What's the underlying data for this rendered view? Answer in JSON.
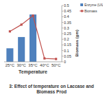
{
  "chart_data": {
    "type": "bar",
    "title": "3: Effect of temperature on Laccase and Biomass Prod",
    "x_label": "Temperature",
    "y_label": "Biomass (gm)",
    "categories": [
      "25°C",
      "30°C",
      "35°C",
      "40°C",
      "50°C"
    ],
    "series": [
      {
        "name": "Enzyme (U/L)",
        "type": "bar",
        "color": "#4f81bd",
        "values": [
          0.12,
          0.22,
          0.42,
          0,
          0
        ]
      },
      {
        "name": "Biomass",
        "type": "line",
        "color": "#c0504d",
        "marker": "square",
        "values": [
          0.27,
          0.33,
          0.41,
          0.03,
          0.025
        ]
      }
    ],
    "ylim": [
      0,
      0.5
    ],
    "yticks": [
      0,
      0.05,
      0.1,
      0.15,
      0.2,
      0.25,
      0.3,
      0.35,
      0.4,
      0.45,
      0.5
    ],
    "grid": false,
    "legend": "top-right"
  }
}
